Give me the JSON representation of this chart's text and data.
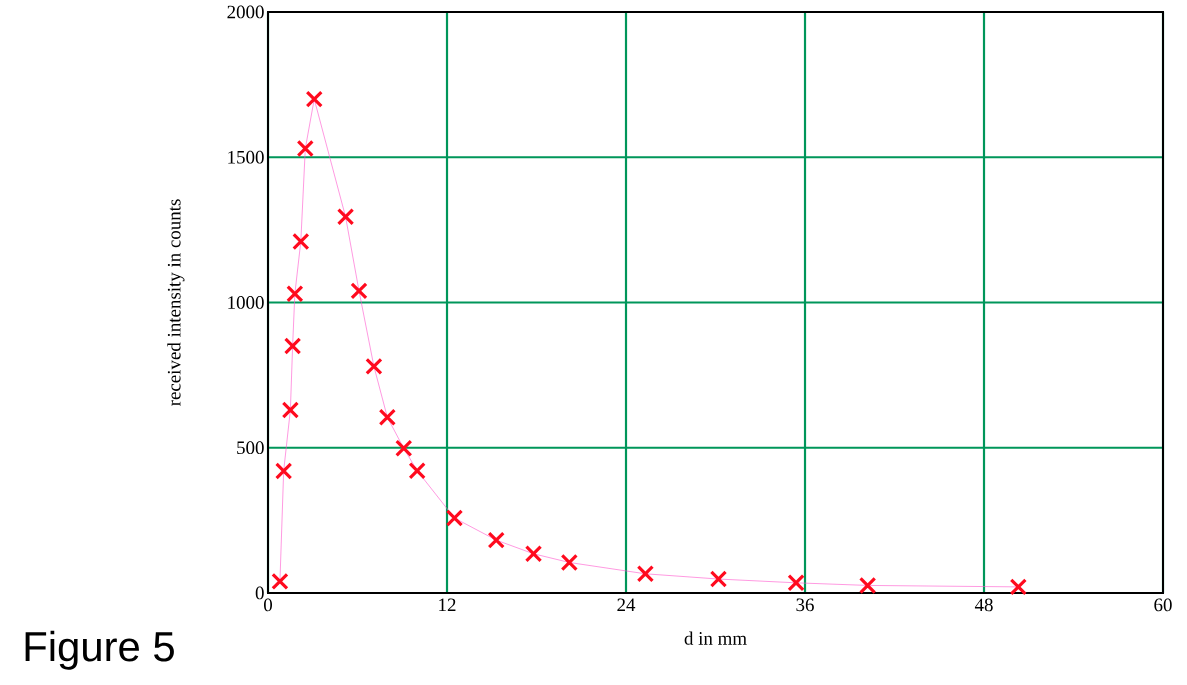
{
  "chart_data": {
    "type": "line",
    "xlabel": "d in mm",
    "ylabel": "received intensity in counts",
    "annotations": [
      "Figure 5"
    ],
    "xlim": [
      0,
      60
    ],
    "ylim": [
      0,
      2000
    ],
    "xticks": [
      0,
      12,
      24,
      36,
      48,
      60
    ],
    "yticks": [
      0,
      500,
      1000,
      1500,
      2000
    ],
    "grid": true,
    "series": [
      {
        "color": "#ff55cc",
        "marker": "none",
        "x": [
          0.8,
          1.05,
          1.5,
          1.65,
          1.8,
          2.2,
          2.5,
          3.1,
          5.2,
          6.1,
          7.1,
          8,
          9.1,
          10,
          12.5,
          15.3,
          17.8,
          20.2,
          25.3,
          30.2,
          35.4,
          40.2,
          50.3
        ],
        "values": [
          40,
          420,
          630,
          850,
          1030,
          1210,
          1530,
          1700,
          1295,
          1040,
          780,
          605,
          498,
          421,
          258,
          182,
          135,
          105,
          66,
          48,
          35,
          26,
          21
        ]
      },
      {
        "type": "scatter",
        "color": "#ff0a1e",
        "marker": "cross",
        "x": [
          0.8,
          1.05,
          1.5,
          1.65,
          1.8,
          2.2,
          2.5,
          3.1,
          5.2,
          6.1,
          7.1,
          8,
          9.1,
          10,
          12.5,
          15.3,
          17.8,
          20.2,
          25.3,
          30.2,
          35.4,
          40.2,
          50.3
        ],
        "values": [
          40,
          420,
          630,
          850,
          1030,
          1210,
          1530,
          1700,
          1295,
          1040,
          780,
          605,
          498,
          421,
          258,
          182,
          135,
          105,
          66,
          48,
          35,
          26,
          21
        ]
      }
    ]
  }
}
